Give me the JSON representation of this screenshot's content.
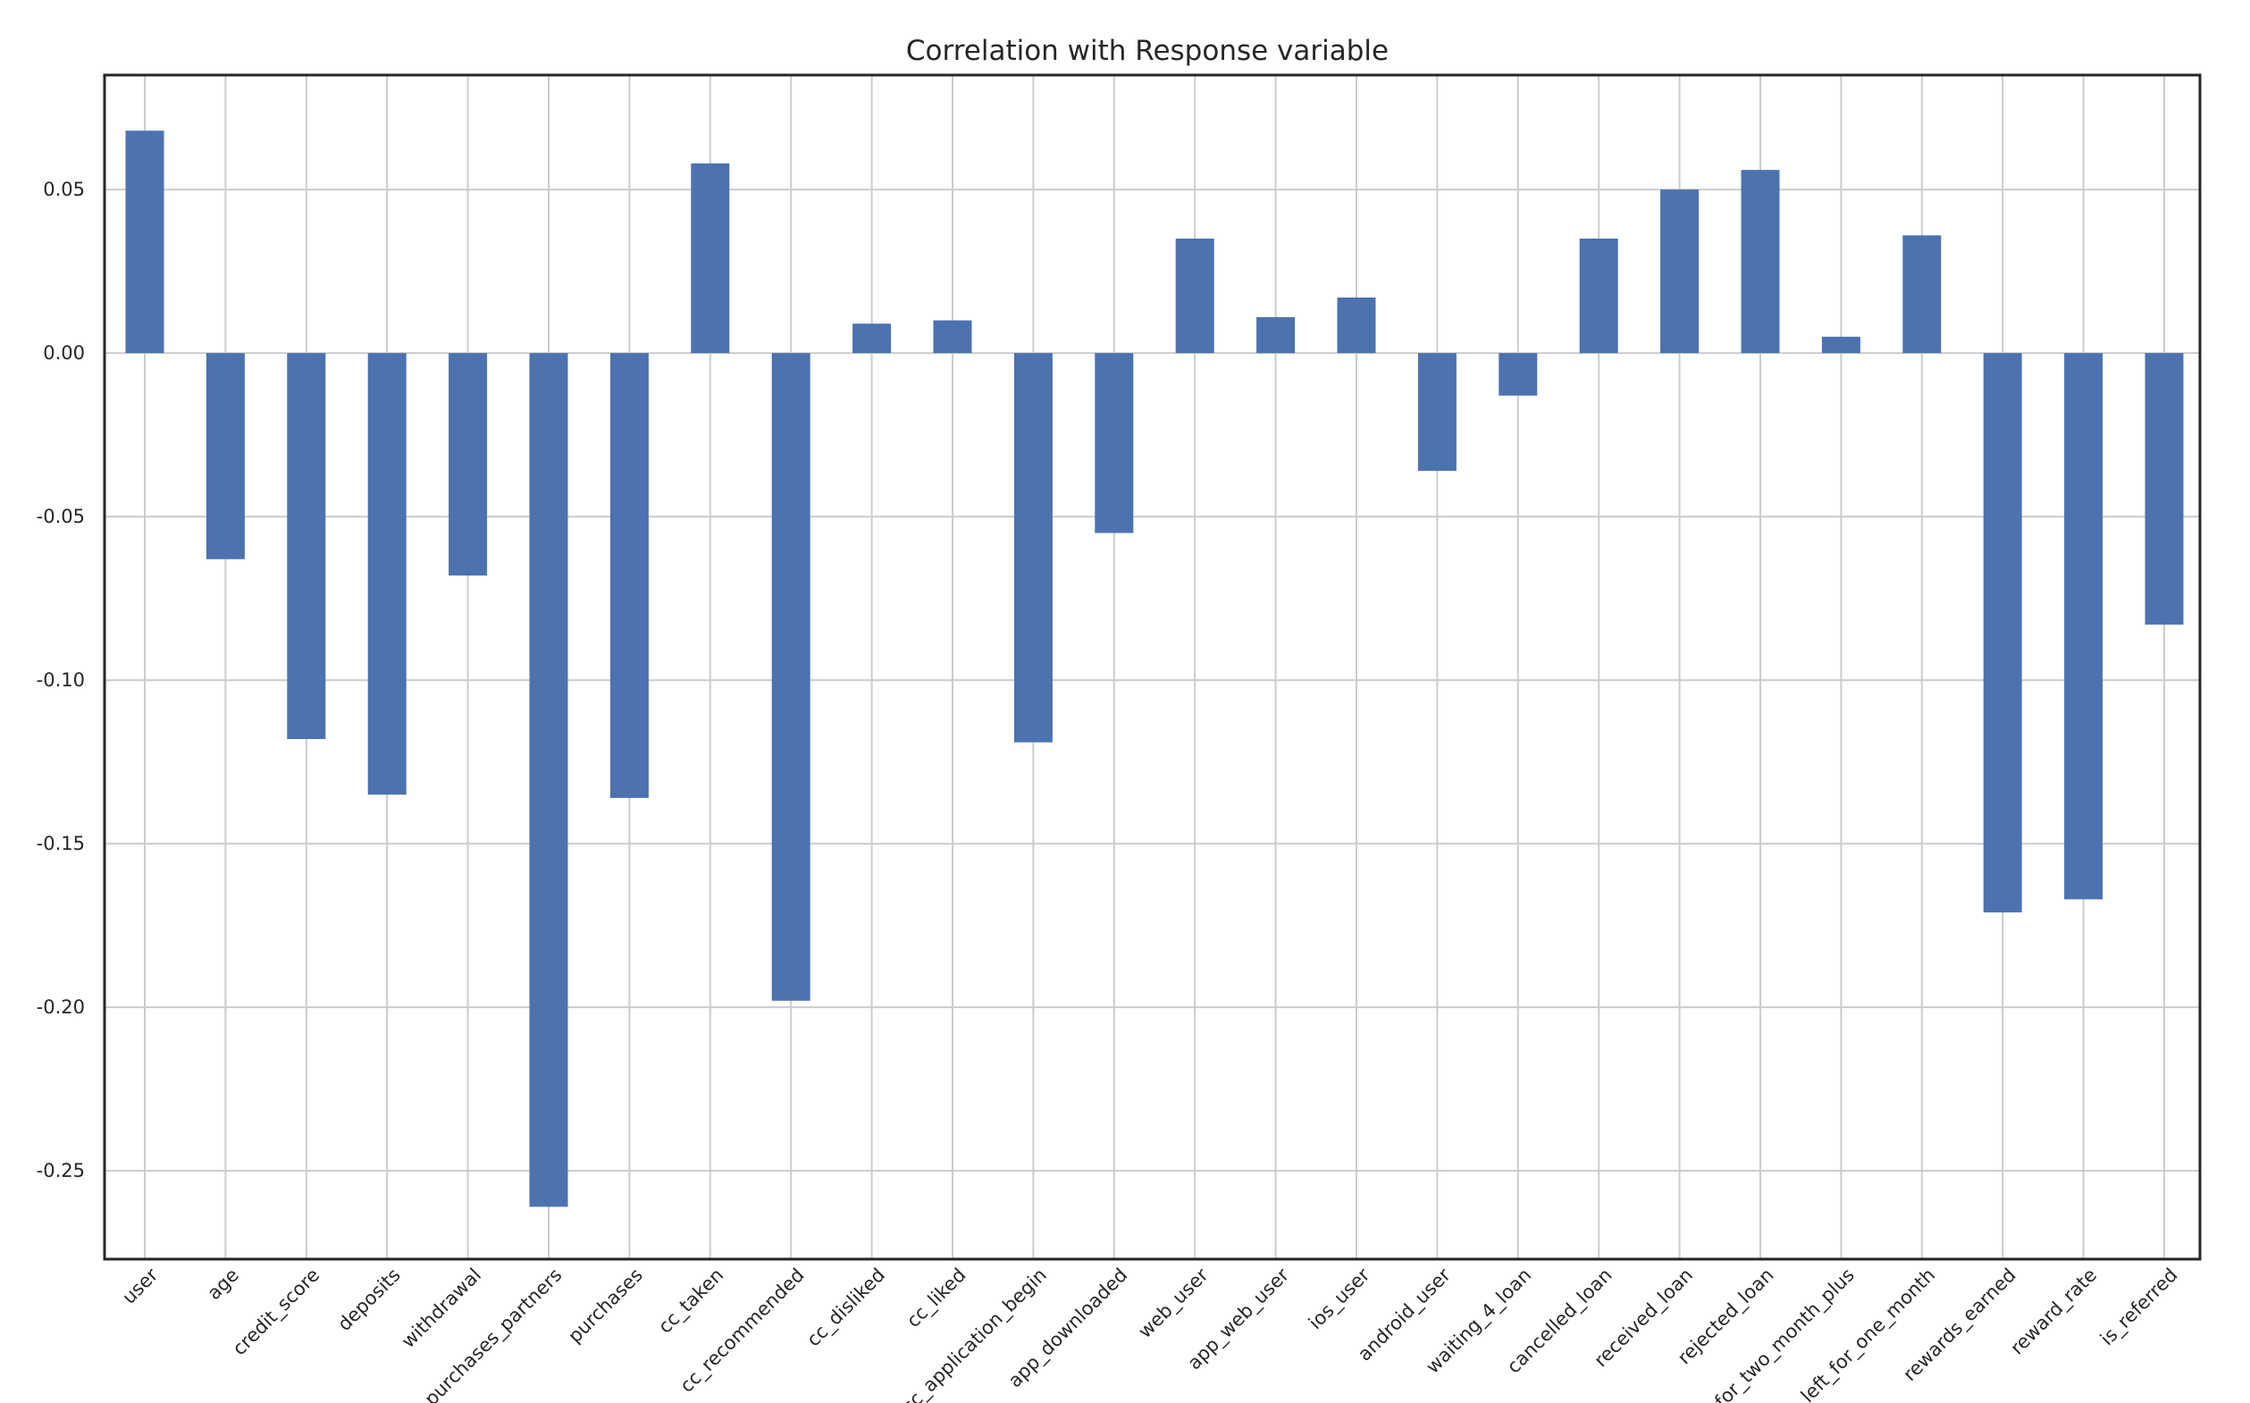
{
  "chart_data": {
    "type": "bar",
    "title": "Correlation with Response variable",
    "xlabel": "",
    "ylabel": "",
    "ylim": [
      -0.277,
      0.085
    ],
    "yticks": [
      0.05,
      0.0,
      -0.05,
      -0.1,
      -0.15,
      -0.2,
      -0.25
    ],
    "ytick_labels": [
      "0.05",
      "0.00",
      "-0.05",
      "-0.10",
      "-0.15",
      "-0.20",
      "-0.25"
    ],
    "grid": true,
    "legend": "none",
    "bar_color": "#4c72b0",
    "categories": [
      "user",
      "age",
      "credit_score",
      "deposits",
      "withdrawal",
      "purchases_partners",
      "purchases",
      "cc_taken",
      "cc_recommended",
      "cc_disliked",
      "cc_liked",
      "cc_application_begin",
      "app_downloaded",
      "web_user",
      "app_web_user",
      "ios_user",
      "android_user",
      "waiting_4_loan",
      "cancelled_loan",
      "received_loan",
      "rejected_loan",
      "for_two_month_plus",
      "left_for_one_month",
      "rewards_earned",
      "reward_rate",
      "is_referred"
    ],
    "values": [
      0.068,
      -0.063,
      -0.118,
      -0.135,
      -0.068,
      -0.261,
      -0.136,
      0.058,
      -0.198,
      0.009,
      0.01,
      -0.119,
      -0.055,
      0.035,
      0.011,
      0.017,
      -0.036,
      -0.013,
      0.035,
      0.05,
      0.056,
      0.005,
      0.036,
      -0.171,
      -0.167,
      -0.083
    ]
  }
}
